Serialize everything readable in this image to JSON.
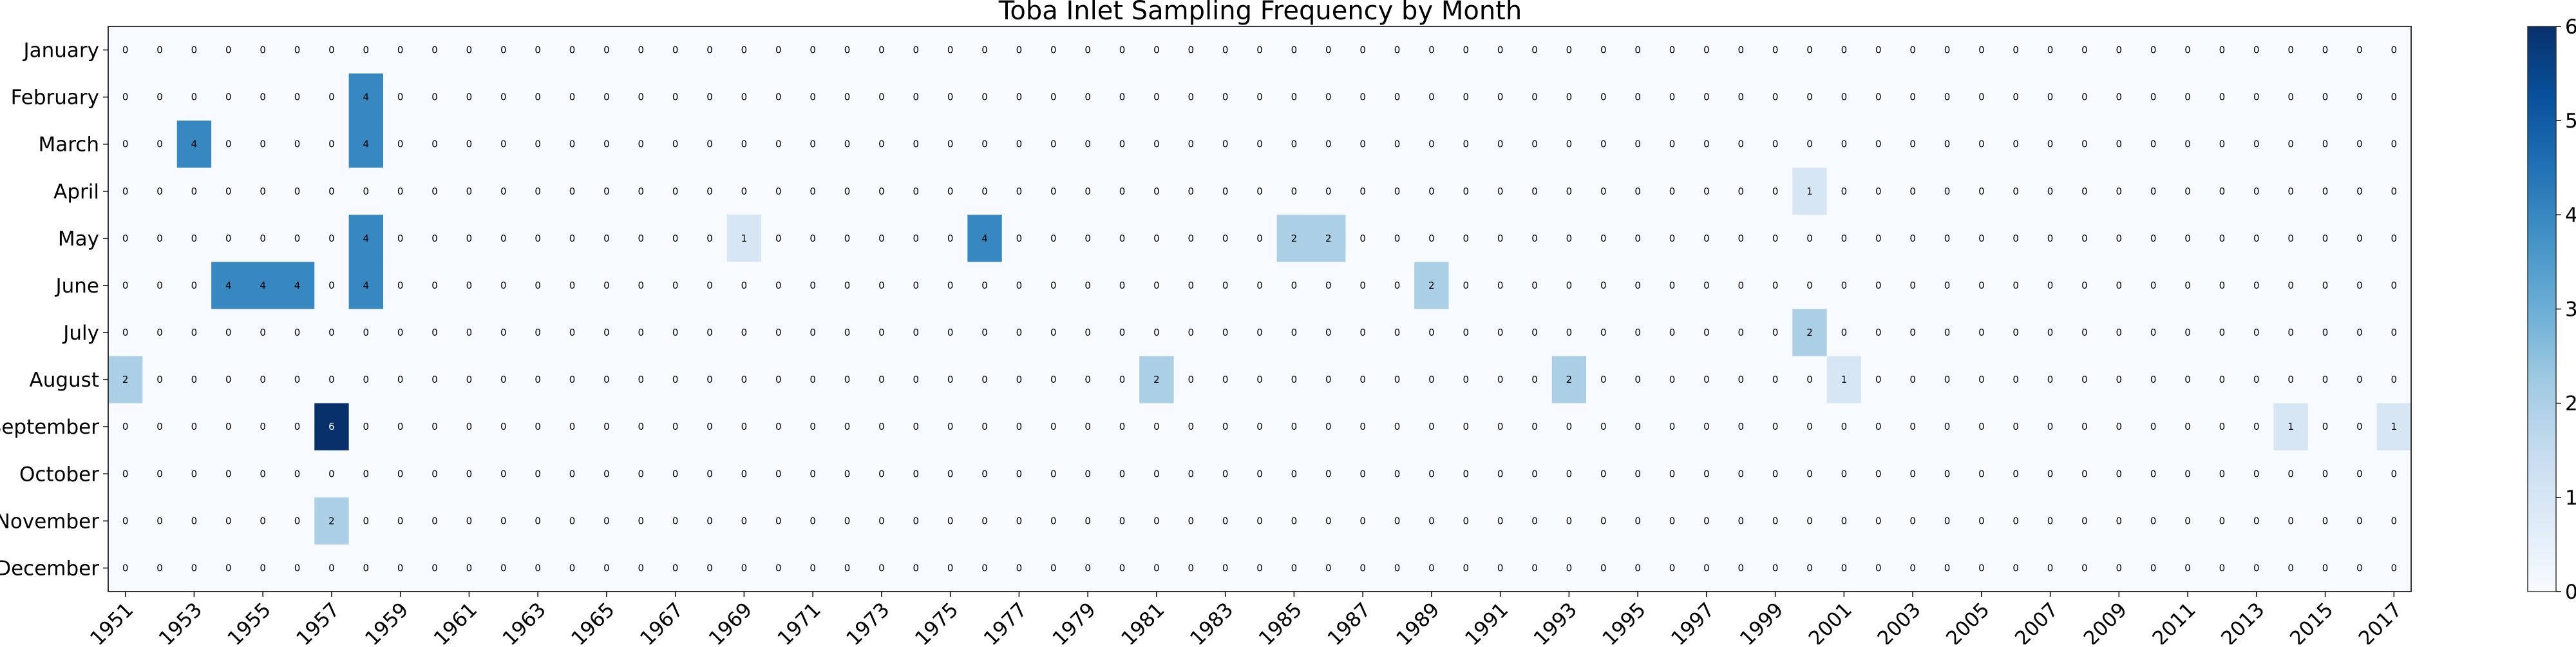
{
  "chart_data": {
    "type": "heatmap",
    "title": "Toba Inlet Sampling Frequency by Month",
    "xlabel": "",
    "ylabel": "",
    "years": [
      1951,
      1952,
      1953,
      1954,
      1955,
      1956,
      1957,
      1958,
      1959,
      1960,
      1961,
      1962,
      1963,
      1964,
      1965,
      1966,
      1967,
      1968,
      1969,
      1970,
      1971,
      1972,
      1973,
      1974,
      1975,
      1976,
      1977,
      1978,
      1979,
      1980,
      1981,
      1982,
      1983,
      1984,
      1985,
      1986,
      1987,
      1988,
      1989,
      1990,
      1991,
      1992,
      1993,
      1994,
      1995,
      1996,
      1997,
      1998,
      1999,
      2000,
      2001,
      2002,
      2003,
      2004,
      2005,
      2006,
      2007,
      2008,
      2009,
      2010,
      2011,
      2012,
      2013,
      2014,
      2015,
      2016,
      2017
    ],
    "x_tick_labels": [
      "1951",
      "1953",
      "1955",
      "1957",
      "1959",
      "1961",
      "1963",
      "1965",
      "1967",
      "1969",
      "1971",
      "1973",
      "1975",
      "1977",
      "1979",
      "1981",
      "1983",
      "1985",
      "1987",
      "1989",
      "1991",
      "1993",
      "1995",
      "1997",
      "1999",
      "2001",
      "2003",
      "2005",
      "2007",
      "2009",
      "2011",
      "2013",
      "2015",
      "2017"
    ],
    "months": [
      "January",
      "February",
      "March",
      "April",
      "May",
      "June",
      "July",
      "August",
      "September",
      "October",
      "November",
      "December"
    ],
    "nonzero": [
      {
        "month": "February",
        "year": 1958,
        "value": 4
      },
      {
        "month": "March",
        "year": 1953,
        "value": 4
      },
      {
        "month": "March",
        "year": 1958,
        "value": 4
      },
      {
        "month": "April",
        "year": 2000,
        "value": 1
      },
      {
        "month": "May",
        "year": 1958,
        "value": 4
      },
      {
        "month": "May",
        "year": 1969,
        "value": 1
      },
      {
        "month": "May",
        "year": 1976,
        "value": 4
      },
      {
        "month": "May",
        "year": 1985,
        "value": 2
      },
      {
        "month": "May",
        "year": 1986,
        "value": 2
      },
      {
        "month": "June",
        "year": 1954,
        "value": 4
      },
      {
        "month": "June",
        "year": 1955,
        "value": 4
      },
      {
        "month": "June",
        "year": 1956,
        "value": 4
      },
      {
        "month": "June",
        "year": 1958,
        "value": 4
      },
      {
        "month": "June",
        "year": 1989,
        "value": 2
      },
      {
        "month": "July",
        "year": 2000,
        "value": 2
      },
      {
        "month": "August",
        "year": 1951,
        "value": 2
      },
      {
        "month": "August",
        "year": 1981,
        "value": 2
      },
      {
        "month": "August",
        "year": 1993,
        "value": 2
      },
      {
        "month": "August",
        "year": 2001,
        "value": 1
      },
      {
        "month": "September",
        "year": 1957,
        "value": 6
      },
      {
        "month": "September",
        "year": 2014,
        "value": 1
      },
      {
        "month": "September",
        "year": 2017,
        "value": 1
      },
      {
        "month": "November",
        "year": 1957,
        "value": 2
      }
    ],
    "colorbar": {
      "min": 0,
      "max": 6,
      "ticks": [
        "0",
        "1",
        "2",
        "3",
        "4",
        "5",
        "6"
      ]
    },
    "colormap": {
      "low": "#f7fbff",
      "high": "#08306b"
    },
    "grid": false
  }
}
